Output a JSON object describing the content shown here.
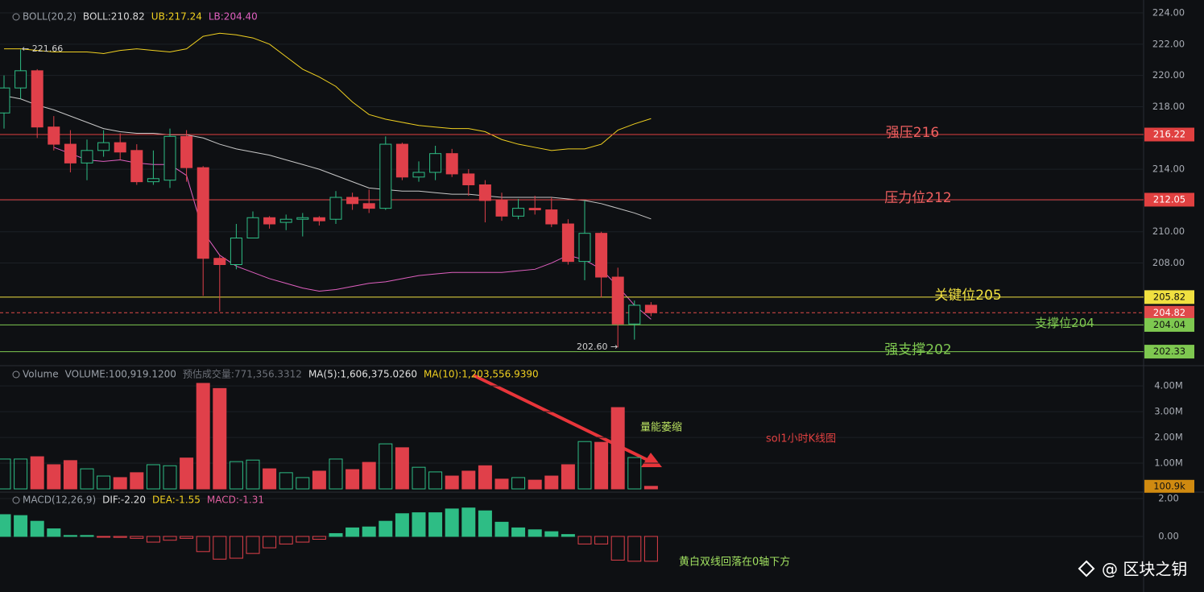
{
  "chart_data": [
    {
      "type": "candlestick",
      "title": "BOLL(20,2)",
      "legend": [
        {
          "text": "BOLL:210.82",
          "color": "#d8d8d8"
        },
        {
          "text": "UB:217.24",
          "color": "#f0d020"
        },
        {
          "text": "LB:204.40",
          "color": "#e060c0"
        }
      ],
      "categories": [
        null,
        null,
        null,
        null,
        null,
        null,
        null,
        null,
        null,
        null,
        null,
        null,
        null,
        null,
        null,
        null,
        null,
        null,
        null,
        null,
        null,
        null,
        null,
        null,
        null,
        null,
        null,
        null,
        null,
        null,
        null,
        null,
        null,
        null,
        null,
        null,
        null,
        null,
        null,
        null
      ],
      "open": [
        217.6,
        219.2,
        220.3,
        216.7,
        215.6,
        214.4,
        215.2,
        215.7,
        215.2,
        213.2,
        213.3,
        216.1,
        214.1,
        208.3,
        207.9,
        209.6,
        210.9,
        210.6,
        210.8,
        210.9,
        210.8,
        212.2,
        211.8,
        211.5,
        215.6,
        213.5,
        213.8,
        215.0,
        213.7,
        213.0,
        212.0,
        211.0,
        211.5,
        211.4,
        210.5,
        208.1,
        209.9,
        207.1,
        204.1,
        205.3
      ],
      "high": [
        220.0,
        221.66,
        220.4,
        217.4,
        216.5,
        215.9,
        216.5,
        216.3,
        215.6,
        215.2,
        216.6,
        216.5,
        214.2,
        208.5,
        210.5,
        211.3,
        211.0,
        211.1,
        211.2,
        211.0,
        212.6,
        212.5,
        212.7,
        216.1,
        215.7,
        214.5,
        215.5,
        215.3,
        214.0,
        213.3,
        212.5,
        212.1,
        212.3,
        212.2,
        210.8,
        212.0,
        210.0,
        207.7,
        205.6,
        205.5
      ],
      "low": [
        216.6,
        218.5,
        216.0,
        215.2,
        213.8,
        213.3,
        214.8,
        214.6,
        213.0,
        213.0,
        212.8,
        213.2,
        205.9,
        204.9,
        207.6,
        209.6,
        210.2,
        210.1,
        209.7,
        210.4,
        210.5,
        211.4,
        211.2,
        211.4,
        213.3,
        213.2,
        213.3,
        213.5,
        212.3,
        210.6,
        210.7,
        210.8,
        211.1,
        210.3,
        207.9,
        206.9,
        205.8,
        202.6,
        203.1,
        204.6
      ],
      "close": [
        219.2,
        220.3,
        216.7,
        215.6,
        214.4,
        215.2,
        215.7,
        215.1,
        213.2,
        213.4,
        216.1,
        214.1,
        208.3,
        207.9,
        209.6,
        210.9,
        210.5,
        210.8,
        210.9,
        210.7,
        212.2,
        211.8,
        211.5,
        215.6,
        213.5,
        213.8,
        215.0,
        213.7,
        213.0,
        212.0,
        211.0,
        211.5,
        211.4,
        210.5,
        208.1,
        209.9,
        207.1,
        204.1,
        205.3,
        204.82
      ],
      "up_color": "#2ebd85",
      "down_color": "#e0404a",
      "bands": [
        {
          "color": "#f0d020",
          "values": [
            221.7,
            221.7,
            221.6,
            221.5,
            221.5,
            221.5,
            221.4,
            221.6,
            221.7,
            221.6,
            221.5,
            221.7,
            222.5,
            222.7,
            222.6,
            222.4,
            222.0,
            221.2,
            220.4,
            219.9,
            219.3,
            218.3,
            217.5,
            217.2,
            217.0,
            216.8,
            216.7,
            216.6,
            216.6,
            216.4,
            215.9,
            215.6,
            215.4,
            215.2,
            215.3,
            215.3,
            215.6,
            216.5,
            216.9,
            217.24
          ]
        },
        {
          "color": "#c8c8c8",
          "values": [
            218.7,
            218.5,
            218.1,
            217.8,
            217.4,
            217.0,
            216.6,
            216.4,
            216.3,
            216.3,
            216.2,
            216.2,
            216.0,
            215.6,
            215.3,
            215.1,
            214.9,
            214.6,
            214.3,
            214.0,
            213.6,
            213.2,
            212.8,
            212.7,
            212.6,
            212.6,
            212.5,
            212.4,
            212.4,
            212.3,
            212.2,
            212.2,
            212.2,
            212.2,
            212.1,
            212.0,
            211.8,
            211.5,
            211.2,
            210.82
          ]
        },
        {
          "color": "#e060c0",
          "values": [
            null,
            null,
            null,
            215.4,
            215.0,
            214.6,
            214.5,
            214.6,
            214.4,
            214.3,
            214.3,
            213.6,
            210.0,
            208.5,
            207.8,
            207.4,
            207.0,
            206.7,
            206.4,
            206.2,
            206.3,
            206.5,
            206.7,
            206.8,
            207.0,
            207.2,
            207.3,
            207.4,
            207.4,
            207.4,
            207.4,
            207.5,
            207.6,
            208.0,
            208.5,
            208.2,
            207.6,
            206.5,
            205.3,
            204.4
          ]
        }
      ],
      "hlines": [
        {
          "value": 216.22,
          "label": "强压216",
          "color": "#e04040",
          "text_color": "#ffffff"
        },
        {
          "value": 212.05,
          "label": "压力位212",
          "color": "#e04040",
          "text_color": "#ffffff"
        },
        {
          "value": 205.82,
          "label": "关键位205",
          "color": "#f0e040",
          "text_color": "#111111"
        },
        {
          "value": 204.82,
          "color": "#e04a4a",
          "text_color": "#ffffff",
          "dashed": true
        },
        {
          "value": 204.04,
          "label": "支撑位204",
          "color": "#7ec850",
          "text_color": "#111111"
        },
        {
          "value": 202.33,
          "label": "强支撑202",
          "color": "#7ec850",
          "text_color": "#111111"
        }
      ],
      "annotations": [
        "← 221.66",
        "202.60 →"
      ],
      "ylim": [
        201.5,
        224.8
      ],
      "yticks": [
        {
          "value": 208,
          "label": "208.00"
        },
        {
          "value": 210,
          "label": "210.00"
        },
        {
          "value": 212,
          "label": "212.00"
        },
        {
          "value": 214,
          "label": "214.00"
        },
        {
          "value": 216,
          "label": "216.00"
        },
        {
          "value": 218,
          "label": "218.00"
        },
        {
          "value": 220,
          "label": "220.00"
        },
        {
          "value": 222,
          "label": "222.00"
        },
        {
          "value": 224,
          "label": "224.00"
        }
      ],
      "grid": true
    },
    {
      "type": "bar",
      "title": "Volume",
      "legend": [
        {
          "text": "VOLUME:100,919.1200",
          "color": "#9aa0a8"
        },
        {
          "text": "预估成交量:771,356.3312",
          "color": "#6c7078"
        },
        {
          "text": "MA(5):1,606,375.0260",
          "color": "#e0e0e0"
        },
        {
          "text": "MA(10):1,203,556.9390",
          "color": "#f0d020"
        }
      ],
      "values": [
        1160000,
        1160000,
        1250000,
        940000,
        1100000,
        780000,
        500000,
        440000,
        630000,
        940000,
        900000,
        1200000,
        4100000,
        3900000,
        1060000,
        1120000,
        780000,
        630000,
        440000,
        690000,
        1160000,
        750000,
        1030000,
        1750000,
        1600000,
        840000,
        660000,
        500000,
        690000,
        900000,
        380000,
        440000,
        340000,
        500000,
        940000,
        1840000,
        1810000,
        3160000,
        1220000,
        100919.12
      ],
      "value_labels": [
        null,
        null,
        null,
        null,
        null,
        null,
        null,
        null,
        null,
        null,
        null,
        null,
        null,
        null,
        null,
        null,
        null,
        null,
        null,
        null,
        null,
        null,
        null,
        null,
        null,
        null,
        null,
        null,
        null,
        null,
        null,
        null,
        null,
        null,
        null,
        null,
        null,
        null,
        null,
        "100.9k"
      ],
      "annotations": [
        "量能萎缩",
        "sol1小时K线图"
      ],
      "ylim": [
        0,
        4600000
      ],
      "yticks": [
        {
          "value": 1000000,
          "label": "1.00M"
        },
        {
          "value": 2000000,
          "label": "2.00M"
        },
        {
          "value": 3000000,
          "label": "3.00M"
        },
        {
          "value": 4000000,
          "label": "4.00M"
        }
      ],
      "grid": true
    },
    {
      "type": "histogram-bar",
      "title": "MACD(12,26,9)",
      "legend": [
        {
          "text": "DIF:-2.20",
          "color": "#e0e0e0"
        },
        {
          "text": "DEA:-1.55",
          "color": "#f0d020"
        },
        {
          "text": "MACD:-1.31",
          "color": "#e060a0"
        }
      ],
      "values": [
        1.15,
        1.1,
        0.8,
        0.4,
        0.05,
        0.05,
        -0.02,
        -0.05,
        -0.1,
        -0.3,
        -0.2,
        -0.1,
        -0.8,
        -1.2,
        -1.15,
        -0.9,
        -0.6,
        -0.4,
        -0.3,
        -0.15,
        0.15,
        0.45,
        0.5,
        0.8,
        1.2,
        1.25,
        1.25,
        1.45,
        1.5,
        1.35,
        0.75,
        0.45,
        0.35,
        0.25,
        0.1,
        -0.4,
        -0.4,
        -1.25,
        -1.31,
        -1.31
      ],
      "annotations": [
        "黄白双线回落在0轴下方"
      ],
      "ylim": [
        -2.9,
        2.1
      ],
      "yticks": [
        {
          "value": 0,
          "label": "0.00"
        },
        {
          "value": 2,
          "label": "2.00"
        }
      ],
      "grid": true
    }
  ],
  "watermark": "@ 区块之钥"
}
